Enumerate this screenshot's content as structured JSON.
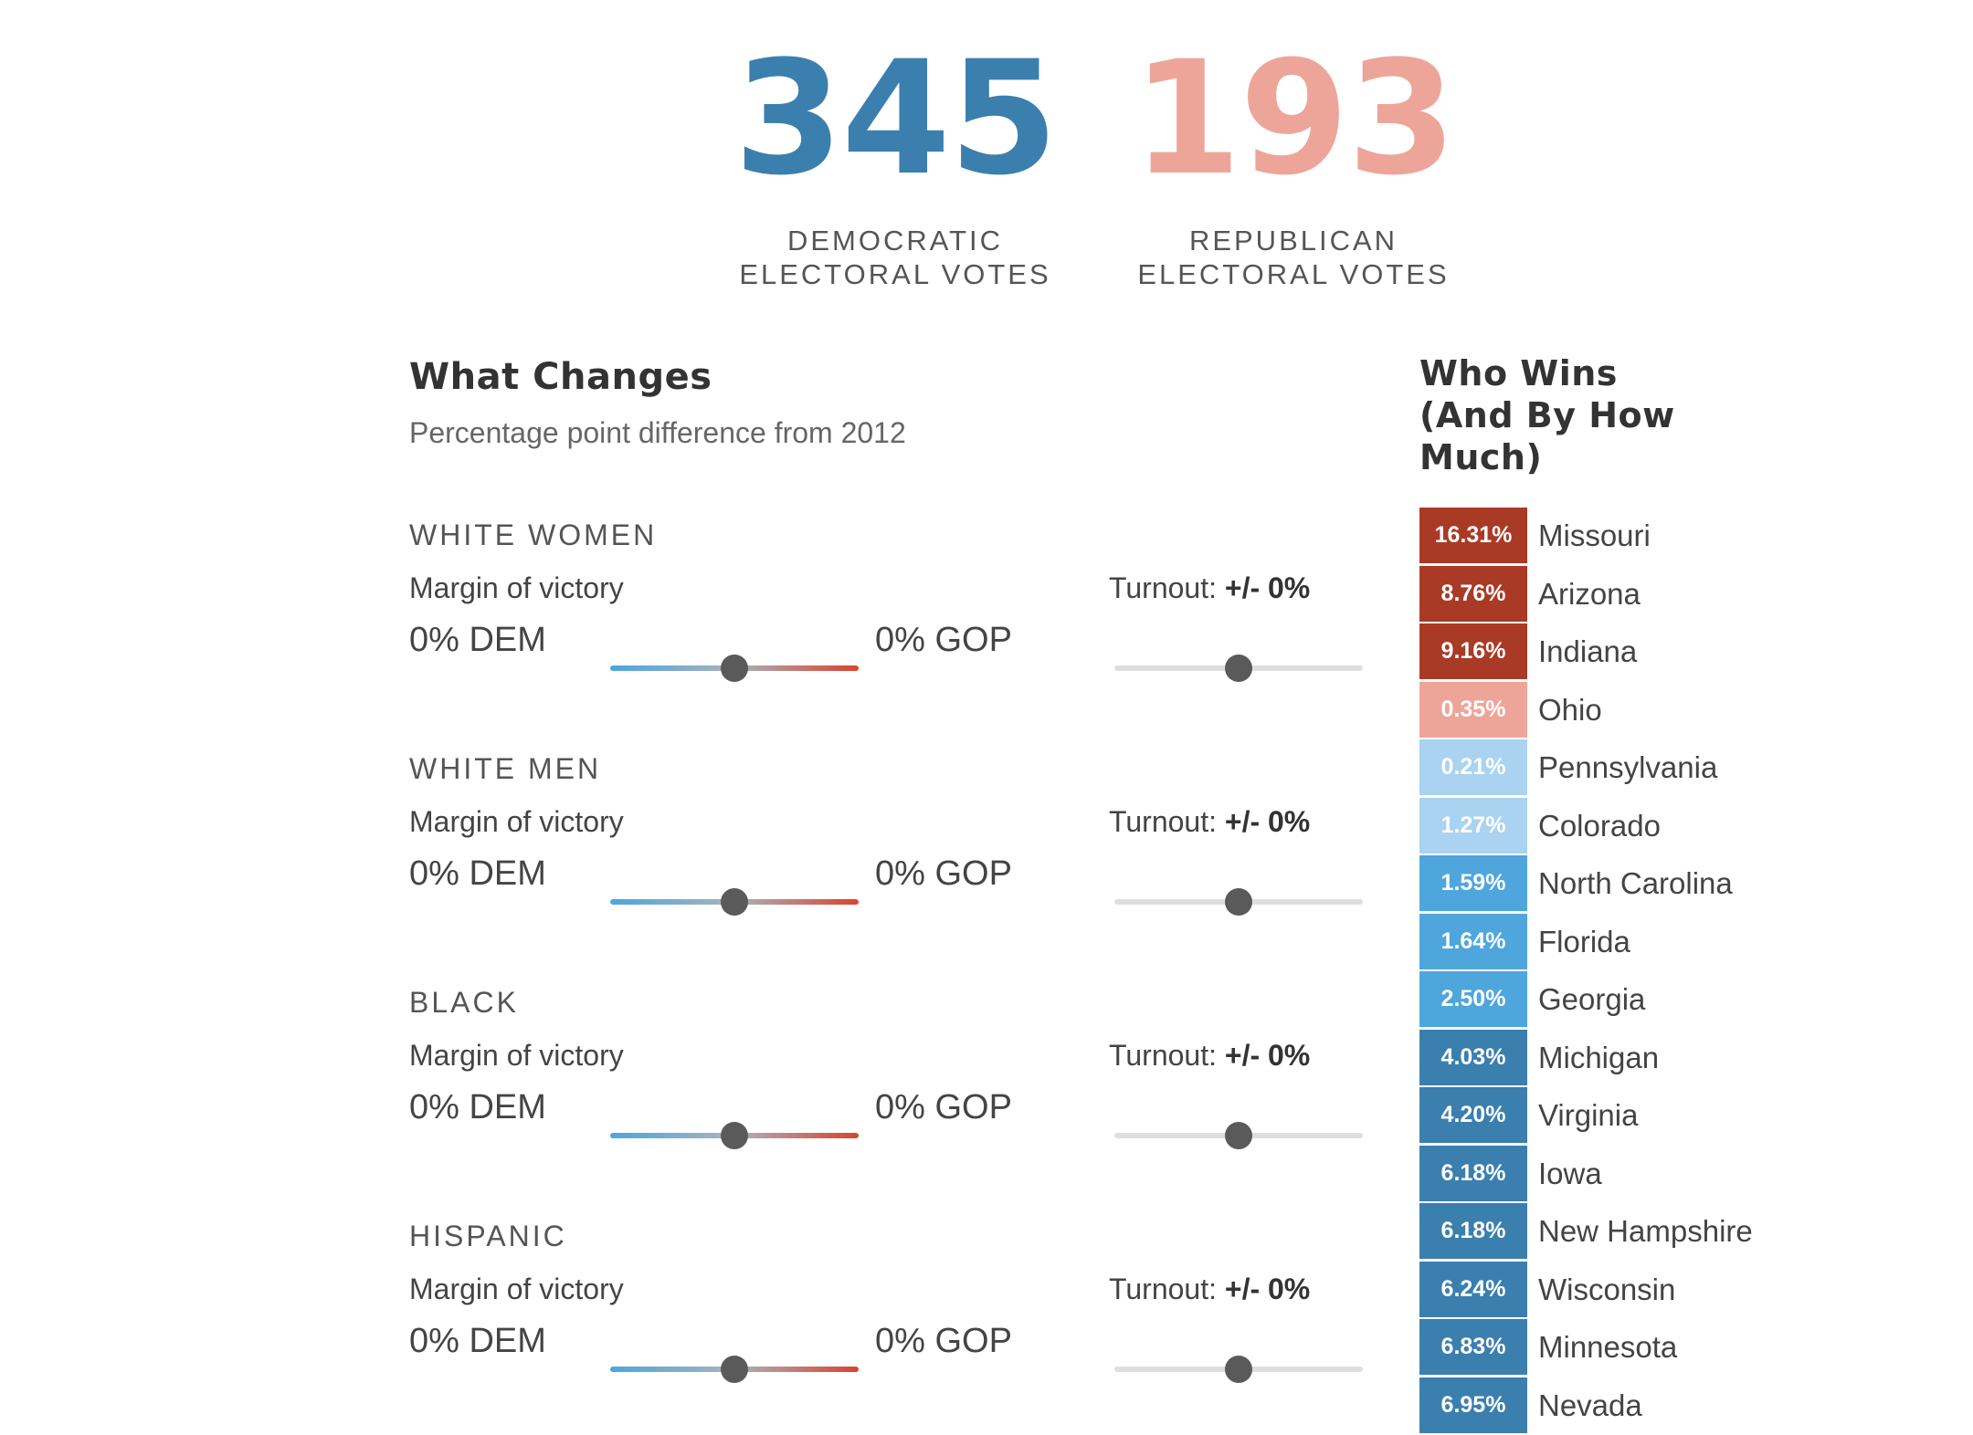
{
  "tally": {
    "dem": {
      "number": "345",
      "label_line1": "DEMOCRATIC",
      "label_line2": "ELECTORAL VOTES",
      "color": "#3b7fae"
    },
    "rep": {
      "number": "193",
      "label_line1": "REPUBLICAN",
      "label_line2": "ELECTORAL VOTES",
      "color": "#eea599"
    }
  },
  "what_changes": {
    "title": "What Changes",
    "subtitle": "Percentage point difference from 2012",
    "groups": [
      {
        "name": "WHITE WOMEN",
        "margin_label": "Margin of victory",
        "dem_label": "0% DEM",
        "gop_label": "0% GOP",
        "turnout_prefix": "Turnout:",
        "turnout_value": "+/- 0%",
        "margin_value": 0.5,
        "turnout_slider": 0.5
      },
      {
        "name": "WHITE MEN",
        "margin_label": "Margin of victory",
        "dem_label": "0% DEM",
        "gop_label": "0% GOP",
        "turnout_prefix": "Turnout:",
        "turnout_value": "+/- 0%",
        "margin_value": 0.5,
        "turnout_slider": 0.5
      },
      {
        "name": "BLACK",
        "margin_label": "Margin of victory",
        "dem_label": "0% DEM",
        "gop_label": "0% GOP",
        "turnout_prefix": "Turnout:",
        "turnout_value": "+/- 0%",
        "margin_value": 0.5,
        "turnout_slider": 0.5
      },
      {
        "name": "HISPANIC",
        "margin_label": "Margin of victory",
        "dem_label": "0% DEM",
        "gop_label": "0% GOP",
        "turnout_prefix": "Turnout:",
        "turnout_value": "+/- 0%",
        "margin_value": 0.5,
        "turnout_slider": 0.5
      }
    ]
  },
  "who_wins": {
    "title_line1": "Who Wins",
    "title_line2": "(And By How",
    "title_line3": "Much)",
    "states": [
      {
        "pct": "16.31%",
        "name": "Missouri",
        "color": "#a93a26"
      },
      {
        "pct": "8.76%",
        "name": "Arizona",
        "color": "#a93a26"
      },
      {
        "pct": "9.16%",
        "name": "Indiana",
        "color": "#a93a26"
      },
      {
        "pct": "0.35%",
        "name": "Ohio",
        "color": "#eea599"
      },
      {
        "pct": "0.21%",
        "name": "Pennsylvania",
        "color": "#a9d3f0"
      },
      {
        "pct": "1.27%",
        "name": "Colorado",
        "color": "#a9d3f0"
      },
      {
        "pct": "1.59%",
        "name": "North Carolina",
        "color": "#4ea6dc"
      },
      {
        "pct": "1.64%",
        "name": "Florida",
        "color": "#4ea6dc"
      },
      {
        "pct": "2.50%",
        "name": "Georgia",
        "color": "#4ea6dc"
      },
      {
        "pct": "4.03%",
        "name": "Michigan",
        "color": "#3b7fae"
      },
      {
        "pct": "4.20%",
        "name": "Virginia",
        "color": "#3b7fae"
      },
      {
        "pct": "6.18%",
        "name": "Iowa",
        "color": "#3b7fae"
      },
      {
        "pct": "6.18%",
        "name": "New Hampshire",
        "color": "#3b7fae"
      },
      {
        "pct": "6.24%",
        "name": "Wisconsin",
        "color": "#3b7fae"
      },
      {
        "pct": "6.83%",
        "name": "Minnesota",
        "color": "#3b7fae"
      },
      {
        "pct": "6.95%",
        "name": "Nevada",
        "color": "#3b7fae"
      }
    ]
  }
}
